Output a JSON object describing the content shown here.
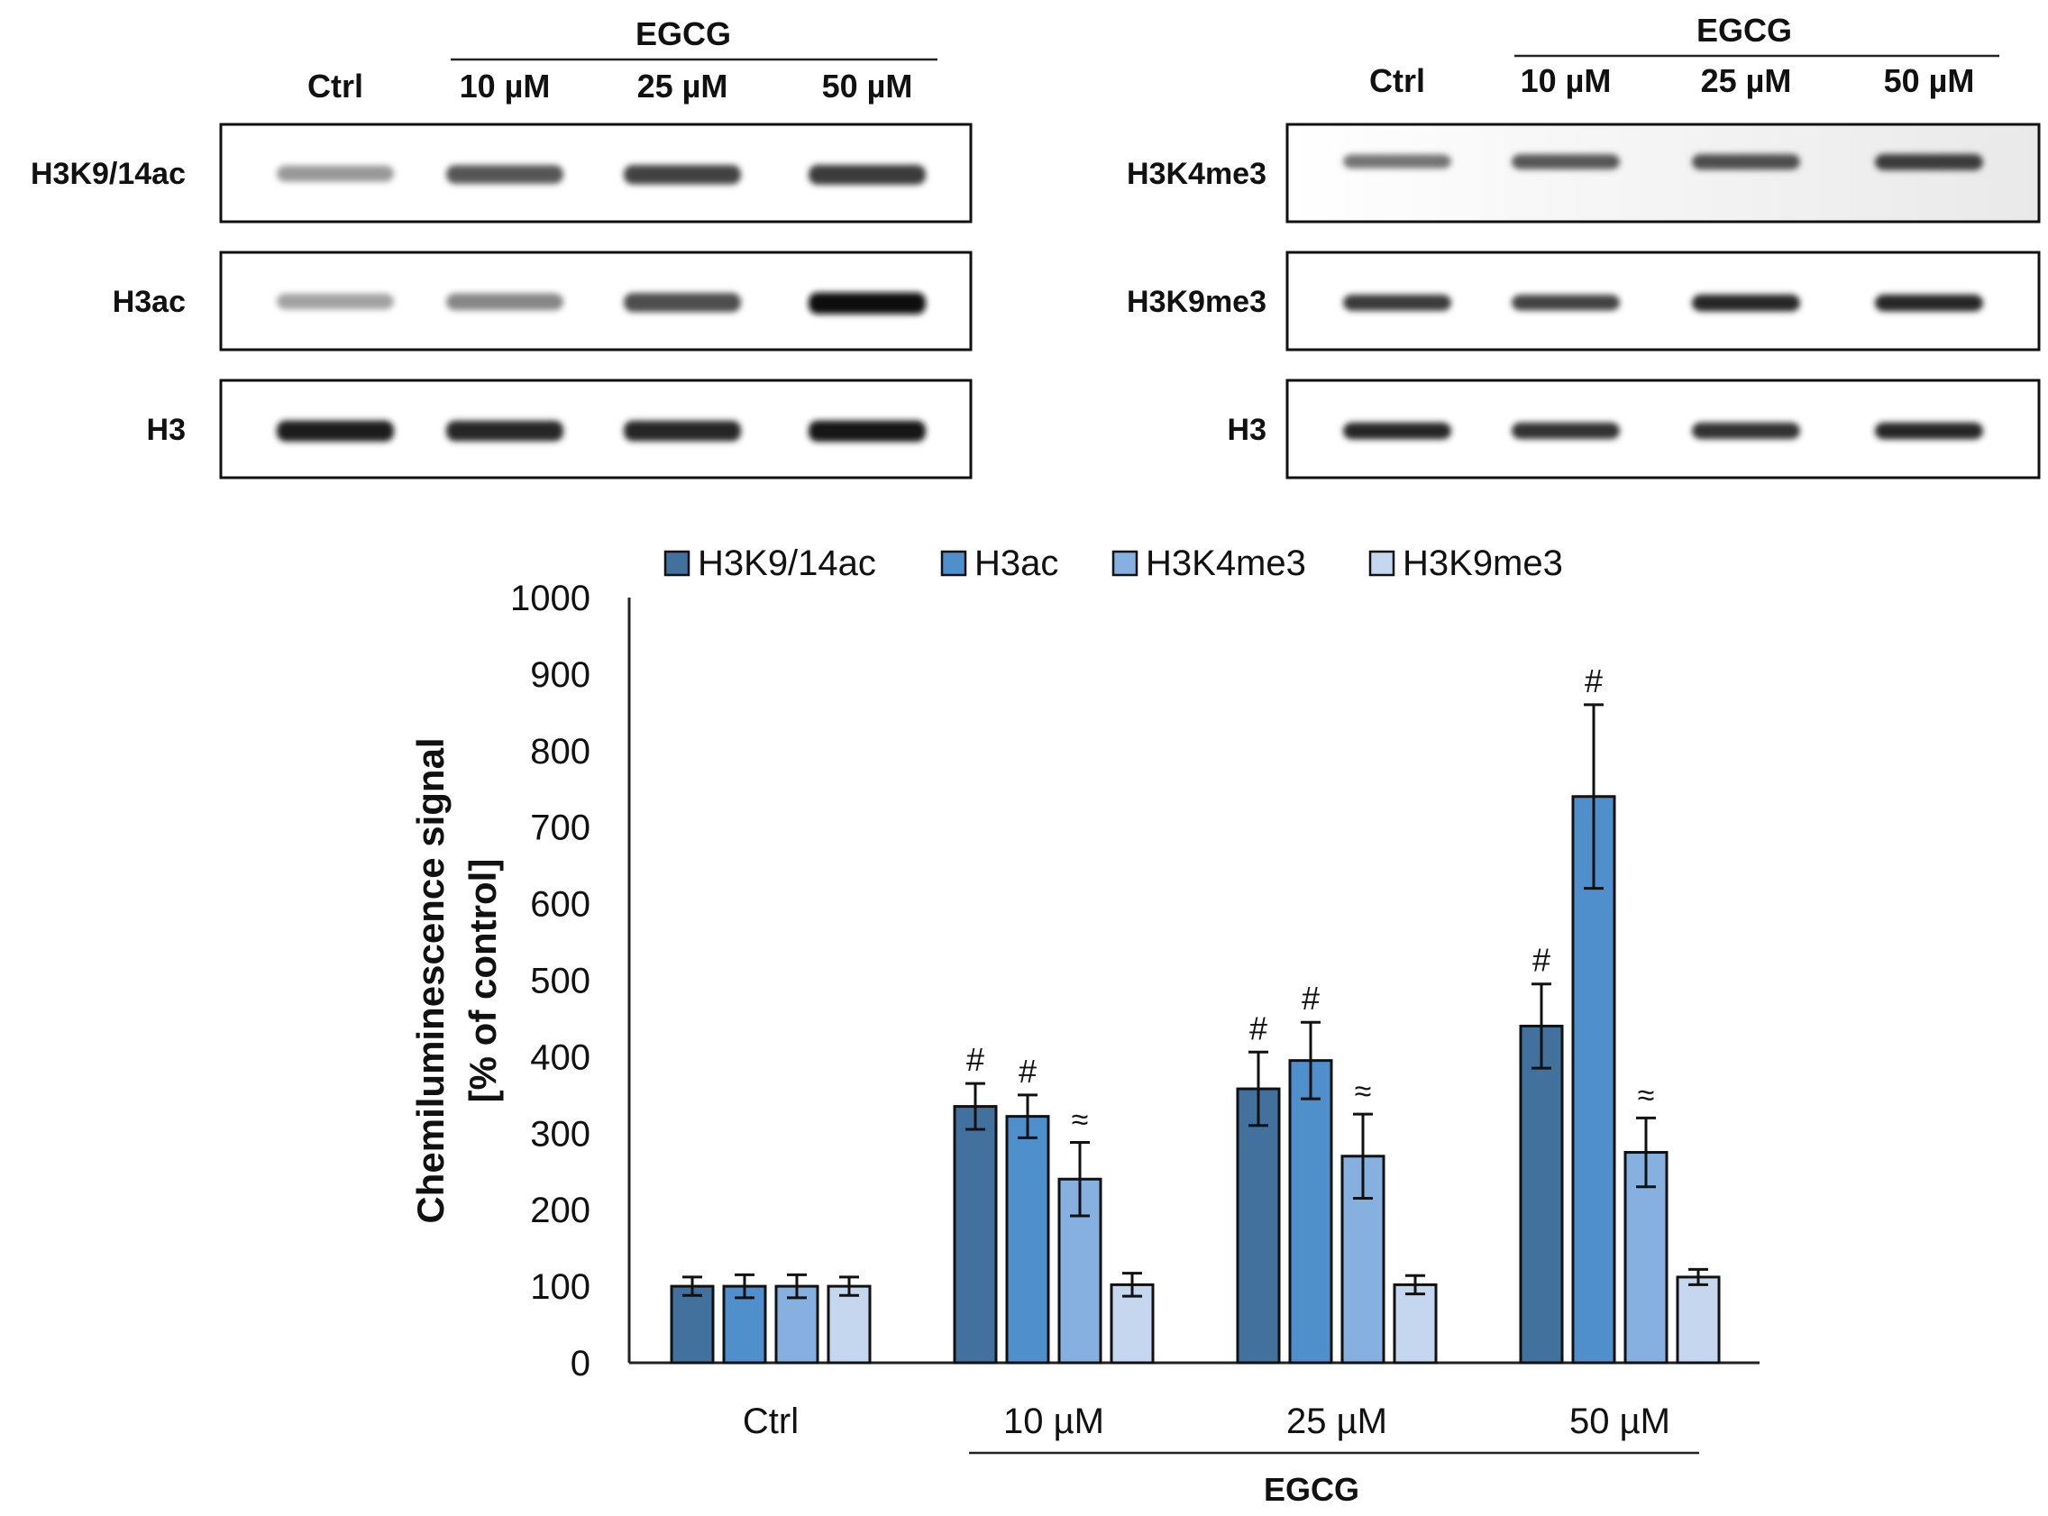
{
  "blots": {
    "left": {
      "group_label": "EGCG",
      "lanes": [
        "Ctrl",
        "10 µM",
        "25 µM",
        "50 µM"
      ],
      "rows": [
        {
          "name": "H3K9/14ac",
          "intensity": [
            0.25,
            0.6,
            0.7,
            0.75
          ]
        },
        {
          "name": "H3ac",
          "intensity": [
            0.2,
            0.35,
            0.65,
            1.0
          ]
        },
        {
          "name": "H3",
          "intensity": [
            0.9,
            0.85,
            0.85,
            0.95
          ]
        }
      ]
    },
    "right": {
      "group_label": "EGCG",
      "lanes": [
        "Ctrl",
        "10 µM",
        "25 µM",
        "50 µM"
      ],
      "rows": [
        {
          "name": "H3K4me3",
          "intensity": [
            0.45,
            0.6,
            0.65,
            0.75
          ]
        },
        {
          "name": "H3K9me3",
          "intensity": [
            0.75,
            0.7,
            0.85,
            0.85
          ]
        },
        {
          "name": "H3",
          "intensity": [
            0.85,
            0.8,
            0.8,
            0.85
          ]
        }
      ]
    }
  },
  "chart_data": {
    "type": "bar",
    "categories": [
      "Ctrl",
      "10 µM",
      "25 µM",
      "50 µM"
    ],
    "group_label": "EGCG",
    "ylabel_line1": "Chemiluminescence signal",
    "ylabel_line2": "[% of control]",
    "xlabel": "",
    "ylim": [
      0,
      1000
    ],
    "yticks": [
      0,
      100,
      200,
      300,
      400,
      500,
      600,
      700,
      800,
      900,
      1000
    ],
    "grid": false,
    "legend_position": "top",
    "series": [
      {
        "name": "H3K9/14ac",
        "color": "#41719c",
        "values": [
          100,
          335,
          358,
          440
        ],
        "errors": [
          12,
          30,
          48,
          55
        ],
        "marks": [
          "",
          "#",
          "#",
          "#"
        ]
      },
      {
        "name": "H3ac",
        "color": "#4f8fcc",
        "values": [
          100,
          322,
          395,
          740
        ],
        "errors": [
          15,
          28,
          50,
          120
        ],
        "marks": [
          "",
          "#",
          "#",
          "#"
        ]
      },
      {
        "name": "H3K4me3",
        "color": "#86b0e0",
        "values": [
          100,
          240,
          270,
          275
        ],
        "errors": [
          15,
          48,
          55,
          45
        ],
        "marks": [
          "",
          "≈",
          "≈",
          "≈"
        ]
      },
      {
        "name": "H3K9me3",
        "color": "#c5d7ef",
        "values": [
          100,
          102,
          102,
          112
        ],
        "errors": [
          12,
          15,
          12,
          10
        ],
        "marks": [
          "",
          "",
          "",
          ""
        ]
      }
    ]
  }
}
